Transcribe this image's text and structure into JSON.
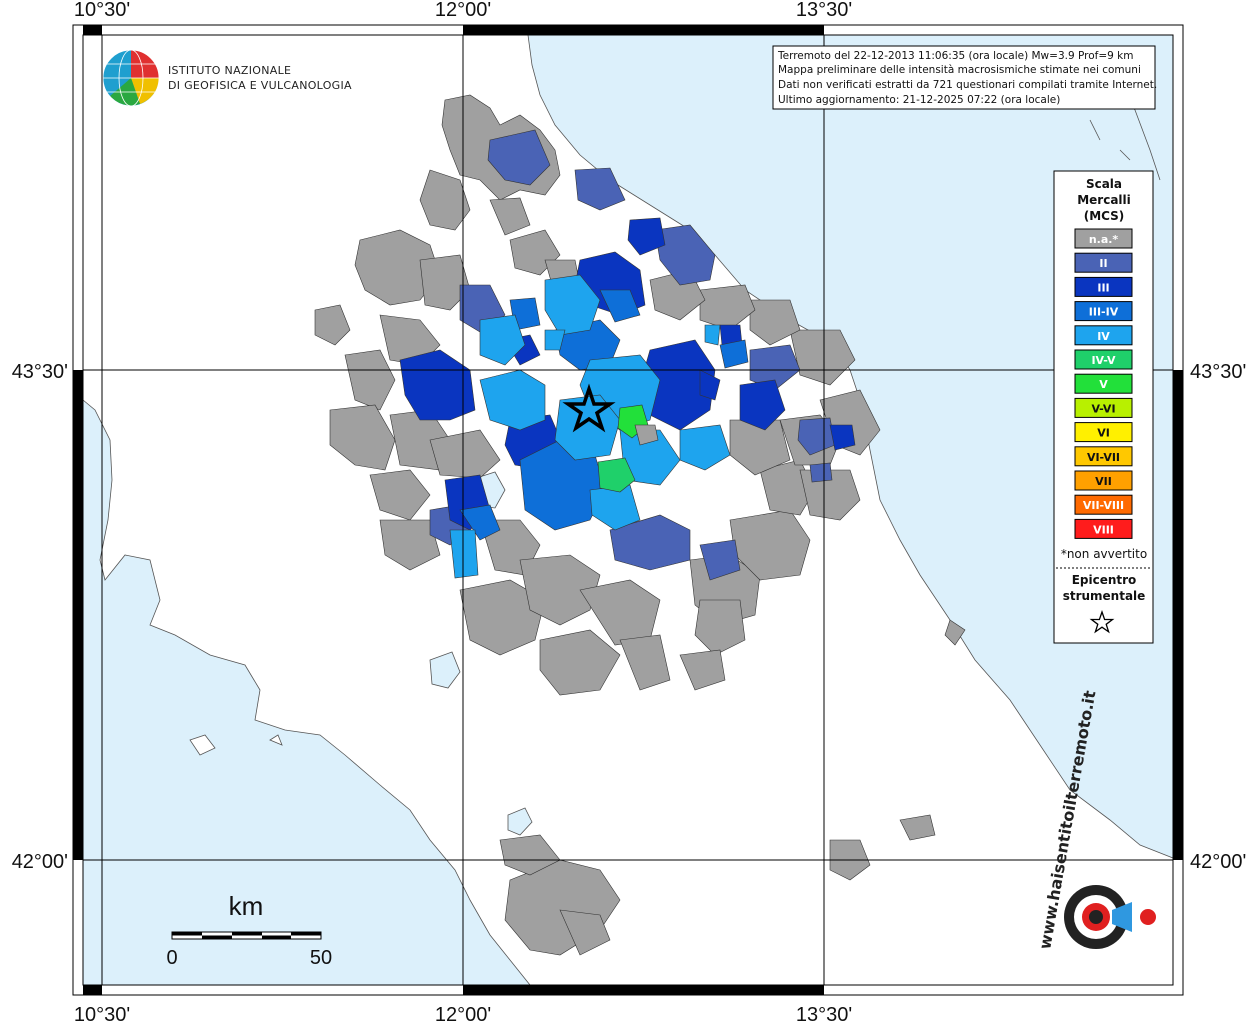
{
  "coordinates": {
    "top_left": "10°30'",
    "top_mid": "12°00'",
    "top_right": "13°30'",
    "left_upper": "43°30'",
    "left_lower": "42°00'",
    "right_upper": "43°30'",
    "right_lower": "42°00'",
    "bottom_left": "10°30'",
    "bottom_mid": "12°00'",
    "bottom_right": "13°30'"
  },
  "logo": {
    "line1": "ISTITUTO NAZIONALE",
    "line2": "DI GEOFISICA E VULCANOLOGIA"
  },
  "info_box": {
    "line1": "Terremoto del 22-12-2013 11:06:35 (ora locale) Mw=3.9 Prof=9 km",
    "line2": "Mappa preliminare delle intensità macrosismiche stimate nei comuni",
    "line3": "Dati non verificati estratti da 721 questionari compilati tramite Internet.",
    "line4": "Ultimo aggiornamento: 21-12-2025 07:22 (ora locale)"
  },
  "legend": {
    "title1": "Scala",
    "title2": "Mercalli",
    "title3": "(MCS)",
    "items": [
      {
        "label": "n.a.*",
        "color": "#a0a0a0"
      },
      {
        "label": "II",
        "color": "#4a63b5"
      },
      {
        "label": "III",
        "color": "#0a35c0"
      },
      {
        "label": "III-IV",
        "color": "#0e6fd8"
      },
      {
        "label": "IV",
        "color": "#1ea4ee"
      },
      {
        "label": "IV-V",
        "color": "#1fd06a"
      },
      {
        "label": "V",
        "color": "#22e03a"
      },
      {
        "label": "V-VI",
        "color": "#b8f000"
      },
      {
        "label": "VI",
        "color": "#fff000"
      },
      {
        "label": "VI-VII",
        "color": "#ffc800"
      },
      {
        "label": "VII",
        "color": "#ffa000"
      },
      {
        "label": "VII-VIII",
        "color": "#ff6a00"
      },
      {
        "label": "VIII",
        "color": "#ff1c1c"
      }
    ],
    "note": "*non avvertito",
    "epicenter1": "Epicentro",
    "epicenter2": "strumentale",
    "epicenter_icon": "star-icon"
  },
  "scale_bar": {
    "unit": "km",
    "start": "0",
    "end": "50"
  },
  "watermark": {
    "text": "www.haisentitoilterremoto.it"
  },
  "colors": {
    "sea": "#dcf0fb",
    "land": "#ffffff",
    "no_data": "#a0a0a0",
    "ii": "#4a63b5",
    "iii": "#0a35c0",
    "iii_iv": "#0e6fd8",
    "iv": "#1ea4ee",
    "iv_v": "#1fd06a",
    "v": "#22e03a"
  }
}
